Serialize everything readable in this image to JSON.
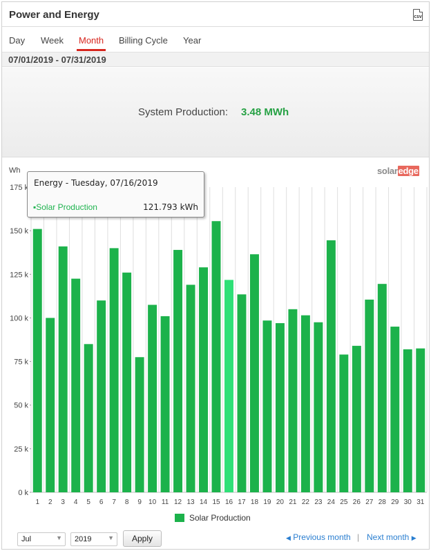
{
  "widget": {
    "title": "Power and Energy",
    "csv_label": "CSV",
    "tabs": [
      {
        "label": "Day"
      },
      {
        "label": "Week"
      },
      {
        "label": "Month",
        "active": true
      },
      {
        "label": "Billing Cycle"
      },
      {
        "label": "Year"
      }
    ],
    "date_range": "07/01/2019 - 07/31/2019",
    "summary": {
      "label": "System Production:",
      "value": "3.48 MWh"
    },
    "logo": {
      "part1": "solar",
      "part2": "edge"
    },
    "tooltip": {
      "title": "Energy - Tuesday, 07/16/2019",
      "series": "▪Solar Production",
      "value": "121.793 kWh"
    },
    "legend": {
      "label": "Solar Production",
      "color": "#1cb24b"
    },
    "controls": {
      "month_select": "Jul",
      "year_select": "2019",
      "apply_label": "Apply",
      "prev_label": "Previous month",
      "next_label": "Next month",
      "separator": "|"
    }
  },
  "chart_data": {
    "type": "bar",
    "ylabel": "Wh",
    "ylim": [
      0,
      175000
    ],
    "yticks": [
      0,
      25000,
      50000,
      75000,
      100000,
      125000,
      150000,
      175000
    ],
    "ytick_labels": [
      "0 k",
      "25 k",
      "50 k",
      "75 k",
      "100 k",
      "125 k",
      "150 k",
      "175 k"
    ],
    "categories": [
      "1",
      "2",
      "3",
      "4",
      "5",
      "6",
      "7",
      "8",
      "9",
      "10",
      "11",
      "12",
      "13",
      "14",
      "15",
      "16",
      "17",
      "18",
      "19",
      "20",
      "21",
      "22",
      "23",
      "24",
      "25",
      "26",
      "27",
      "28",
      "29",
      "30",
      "31"
    ],
    "series": [
      {
        "name": "Solar Production",
        "color": "#1cb24b",
        "highlight_color": "#2ee077",
        "highlight_index": 15,
        "values": [
          151000,
          100000,
          141000,
          122500,
          85000,
          110000,
          140000,
          126000,
          77500,
          107500,
          101000,
          139000,
          119000,
          129000,
          155500,
          121793,
          113500,
          136500,
          98500,
          97000,
          105000,
          101500,
          97500,
          144500,
          79000,
          84000,
          110500,
          119500,
          95000,
          82000,
          82500
        ]
      }
    ],
    "grid": true
  }
}
